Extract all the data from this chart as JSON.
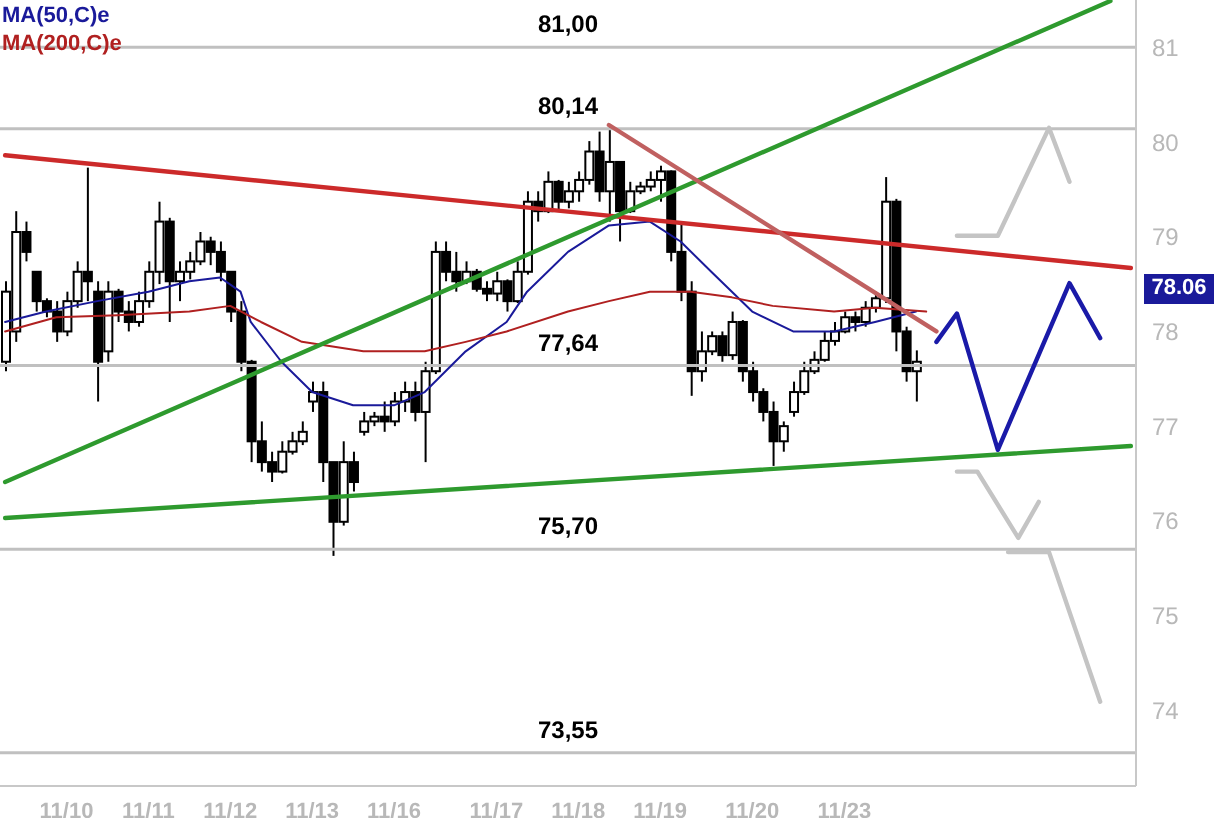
{
  "chart_data": {
    "type": "candlestick",
    "categories": [
      null,
      null,
      null,
      null,
      null,
      null,
      "11/10",
      null,
      null,
      null,
      null,
      null,
      null,
      null,
      "11/11",
      null,
      null,
      null,
      null,
      null,
      null,
      null,
      "11/12",
      null,
      null,
      null,
      null,
      null,
      null,
      null,
      "11/13",
      null,
      null,
      null,
      null,
      null,
      null,
      null,
      "11/16",
      null,
      null,
      null,
      null,
      null,
      null,
      null,
      null,
      null,
      "11/17",
      null,
      null,
      null,
      null,
      null,
      null,
      null,
      "11/18",
      null,
      null,
      null,
      null,
      null,
      null,
      null,
      "11/19",
      null,
      null,
      null,
      null,
      null,
      null,
      null,
      null,
      "11/20",
      null,
      null,
      null,
      null,
      null,
      null,
      null,
      null,
      "11/23",
      null,
      null,
      null,
      null,
      null,
      null,
      null,
      null,
      null,
      null,
      null,
      null,
      null,
      null,
      null,
      null,
      null,
      null,
      null,
      null,
      null,
      null,
      null,
      null,
      null,
      null,
      null,
      null
    ],
    "ohlc": [
      [
        77.68,
        78.53,
        77.58,
        78.42
      ],
      [
        78.0,
        79.27,
        77.89,
        79.05
      ],
      [
        79.05,
        79.16,
        78.74,
        78.84
      ],
      [
        78.63,
        78.63,
        78.21,
        78.32
      ],
      [
        78.32,
        78.35,
        78.15,
        78.21
      ],
      [
        78.21,
        78.32,
        77.89,
        78.0
      ],
      [
        78.0,
        78.42,
        77.95,
        78.32
      ],
      [
        78.32,
        78.74,
        78.25,
        78.63
      ],
      [
        78.63,
        79.73,
        78.32,
        78.53
      ],
      [
        78.42,
        78.53,
        77.26,
        77.68
      ],
      [
        77.79,
        78.53,
        77.68,
        78.42
      ],
      [
        78.42,
        78.45,
        78.1,
        78.21
      ],
      [
        78.21,
        78.32,
        78.0,
        78.1
      ],
      [
        78.1,
        78.42,
        78.05,
        78.32
      ],
      [
        78.32,
        78.74,
        78.25,
        78.63
      ],
      [
        78.63,
        79.37,
        78.5,
        79.16
      ],
      [
        79.16,
        79.2,
        78.1,
        78.53
      ],
      [
        78.53,
        78.74,
        78.32,
        78.63
      ],
      [
        78.63,
        78.84,
        78.55,
        78.74
      ],
      [
        78.74,
        79.05,
        78.7,
        78.95
      ],
      [
        78.95,
        79.0,
        78.7,
        78.84
      ],
      [
        78.84,
        78.95,
        78.53,
        78.63
      ],
      [
        78.63,
        78.63,
        78.1,
        78.21
      ],
      [
        78.21,
        78.32,
        77.58,
        77.68
      ],
      [
        77.68,
        77.7,
        76.62,
        76.84
      ],
      [
        76.84,
        77.05,
        76.52,
        76.62
      ],
      [
        76.62,
        76.73,
        76.41,
        76.52
      ],
      [
        76.52,
        76.84,
        76.5,
        76.73
      ],
      [
        76.73,
        76.94,
        76.7,
        76.84
      ],
      [
        76.84,
        77.05,
        76.8,
        76.94
      ],
      [
        77.26,
        77.47,
        77.15,
        77.36
      ],
      [
        77.36,
        77.47,
        76.41,
        76.62
      ],
      [
        76.62,
        76.62,
        75.63,
        75.99
      ],
      [
        75.99,
        76.84,
        75.95,
        76.62
      ],
      [
        76.62,
        76.73,
        76.31,
        76.41
      ],
      [
        76.94,
        77.15,
        76.9,
        77.05
      ],
      [
        77.05,
        77.15,
        77.0,
        77.1
      ],
      [
        77.1,
        77.26,
        76.94,
        77.05
      ],
      [
        77.05,
        77.36,
        77.0,
        77.26
      ],
      [
        77.26,
        77.47,
        77.15,
        77.36
      ],
      [
        77.36,
        77.47,
        77.05,
        77.15
      ],
      [
        77.15,
        77.68,
        76.62,
        77.58
      ],
      [
        77.58,
        78.95,
        77.55,
        78.84
      ],
      [
        78.84,
        78.95,
        78.53,
        78.63
      ],
      [
        78.63,
        78.84,
        78.42,
        78.53
      ],
      [
        78.53,
        78.74,
        78.5,
        78.63
      ],
      [
        78.63,
        78.66,
        78.42,
        78.45
      ],
      [
        78.45,
        78.53,
        78.32,
        78.4
      ],
      [
        78.4,
        78.63,
        78.32,
        78.53
      ],
      [
        78.53,
        78.55,
        78.21,
        78.32
      ],
      [
        78.32,
        78.74,
        78.3,
        78.63
      ],
      [
        78.63,
        79.48,
        78.6,
        79.37
      ],
      [
        79.37,
        79.48,
        79.16,
        79.27
      ],
      [
        79.27,
        79.69,
        79.25,
        79.58
      ],
      [
        79.58,
        79.6,
        79.27,
        79.37
      ],
      [
        79.37,
        79.58,
        79.3,
        79.48
      ],
      [
        79.48,
        79.69,
        79.37,
        79.6
      ],
      [
        79.6,
        80.01,
        79.55,
        79.9
      ],
      [
        79.9,
        80.11,
        79.37,
        79.48
      ],
      [
        79.48,
        80.18,
        79.16,
        79.79
      ],
      [
        79.79,
        79.8,
        78.95,
        79.27
      ],
      [
        79.27,
        79.58,
        79.25,
        79.48
      ],
      [
        79.48,
        79.58,
        79.45,
        79.53
      ],
      [
        79.53,
        79.69,
        79.48,
        79.6
      ],
      [
        79.6,
        79.75,
        79.37,
        79.69
      ],
      [
        79.69,
        79.7,
        78.74,
        78.84
      ],
      [
        78.84,
        79.16,
        78.32,
        78.42
      ],
      [
        78.42,
        78.53,
        77.32,
        77.58
      ],
      [
        77.58,
        78.0,
        77.47,
        77.79
      ],
      [
        77.79,
        78.0,
        77.75,
        77.95
      ],
      [
        77.95,
        78.0,
        77.68,
        77.75
      ],
      [
        77.75,
        78.21,
        77.7,
        78.1
      ],
      [
        78.1,
        78.12,
        77.47,
        77.58
      ],
      [
        77.58,
        77.68,
        77.26,
        77.36
      ],
      [
        77.36,
        77.4,
        77.05,
        77.15
      ],
      [
        77.15,
        77.26,
        76.58,
        76.84
      ],
      [
        76.84,
        77.05,
        76.73,
        77.0
      ],
      [
        77.15,
        77.47,
        77.1,
        77.36
      ],
      [
        77.36,
        77.68,
        77.33,
        77.58
      ],
      [
        77.58,
        77.79,
        77.55,
        77.7
      ],
      [
        77.7,
        78.0,
        77.68,
        77.9
      ],
      [
        77.9,
        78.1,
        77.85,
        78.0
      ],
      [
        78.0,
        78.21,
        77.98,
        78.15
      ],
      [
        78.15,
        78.21,
        78.0,
        78.1
      ],
      [
        78.1,
        78.32,
        78.05,
        78.25
      ],
      [
        78.25,
        78.42,
        78.2,
        78.35
      ],
      [
        78.35,
        79.63,
        78.3,
        79.37
      ],
      [
        79.37,
        79.4,
        77.79,
        78.0
      ],
      [
        78.0,
        78.05,
        77.47,
        77.58
      ],
      [
        77.58,
        77.8,
        77.26,
        77.68
      ],
      null,
      null,
      null,
      null,
      null,
      null,
      null,
      null,
      null,
      null,
      null,
      null,
      null,
      null,
      null,
      null,
      null,
      null,
      null,
      null,
      null
    ],
    "color": "#000000",
    "series": [
      {
        "type": "line",
        "name": "MA(50,C)e",
        "color": "#1a1a9a",
        "values": [
          78.1,
          null,
          null,
          null,
          78.21,
          null,
          null,
          null,
          null,
          78.32,
          null,
          null,
          null,
          null,
          78.42,
          null,
          null,
          null,
          78.53,
          null,
          null,
          78.57,
          null,
          78.42,
          78.1,
          null,
          null,
          77.68,
          null,
          null,
          77.36,
          null,
          null,
          null,
          77.22,
          null,
          null,
          null,
          77.22,
          null,
          null,
          77.36,
          null,
          null,
          null,
          77.79,
          null,
          null,
          null,
          78.1,
          null,
          78.42,
          null,
          null,
          null,
          78.84,
          null,
          null,
          null,
          79.12,
          null,
          null,
          null,
          79.16,
          null,
          null,
          78.95,
          null,
          null,
          78.63,
          null,
          null,
          null,
          78.21,
          null,
          null,
          null,
          78.0,
          null,
          null,
          null,
          78.0,
          null,
          null,
          null,
          78.1,
          null,
          null,
          null,
          78.21,
          null,
          null,
          null,
          null,
          null,
          null,
          null,
          null,
          null,
          null,
          null,
          null,
          null,
          null,
          null,
          null,
          null,
          null,
          null,
          null,
          null
        ]
      },
      {
        "type": "line",
        "name": "MA(200,C)e",
        "color": "#b02020",
        "values": [
          78.0,
          null,
          null,
          null,
          null,
          78.15,
          null,
          null,
          null,
          null,
          null,
          78.17,
          null,
          null,
          null,
          null,
          null,
          null,
          78.21,
          null,
          null,
          null,
          78.27,
          null,
          null,
          78.1,
          null,
          null,
          null,
          77.89,
          null,
          null,
          null,
          null,
          null,
          77.79,
          null,
          null,
          null,
          null,
          null,
          77.79,
          null,
          null,
          null,
          77.89,
          null,
          null,
          null,
          78.0,
          null,
          null,
          null,
          null,
          null,
          78.21,
          null,
          null,
          null,
          78.32,
          null,
          null,
          null,
          78.42,
          null,
          null,
          null,
          78.42,
          null,
          null,
          null,
          78.36,
          null,
          null,
          null,
          78.27,
          null,
          null,
          null,
          null,
          null,
          78.21,
          null,
          null,
          null,
          78.25,
          null,
          null,
          null,
          null,
          78.21,
          null,
          null,
          null,
          null,
          null,
          null,
          null,
          null,
          null,
          null,
          null,
          null,
          null,
          null,
          null,
          null,
          null,
          null,
          null,
          null
        ]
      },
      {
        "type": "line",
        "color": "#cc2a2a",
        "values": [
          79.86,
          null,
          null,
          null,
          null,
          null,
          null,
          null,
          null,
          null,
          null,
          null,
          null,
          null,
          null,
          null,
          null,
          null,
          null,
          null,
          null,
          null,
          null,
          null,
          null,
          null,
          null,
          null,
          null,
          null,
          null,
          null,
          null,
          null,
          null,
          null,
          null,
          null,
          null,
          null,
          null,
          null,
          null,
          null,
          null,
          null,
          null,
          null,
          null,
          null,
          null,
          null,
          null,
          null,
          null,
          null,
          null,
          null,
          null,
          null,
          null,
          null,
          null,
          null,
          null,
          null,
          null,
          null,
          null,
          null,
          null,
          null,
          null,
          null,
          null,
          null,
          null,
          null,
          null,
          null,
          null,
          null,
          null,
          null,
          null,
          null,
          null,
          null,
          null,
          null,
          null,
          null,
          null,
          null,
          null,
          null,
          null,
          null,
          null,
          null,
          null,
          null,
          null,
          null,
          null,
          null,
          null,
          null,
          null,
          null,
          78.67
        ]
      },
      {
        "type": "line",
        "color": "#2e9a2e",
        "values": [
          76.41,
          null,
          null,
          null,
          null,
          null,
          null,
          null,
          null,
          null,
          null,
          null,
          null,
          null,
          null,
          null,
          null,
          null,
          null,
          null,
          null,
          null,
          null,
          null,
          null,
          null,
          null,
          null,
          null,
          null,
          null,
          null,
          null,
          null,
          null,
          null,
          null,
          null,
          null,
          null,
          null,
          null,
          null,
          null,
          null,
          null,
          null,
          null,
          null,
          null,
          null,
          null,
          null,
          null,
          null,
          null,
          null,
          null,
          null,
          null,
          null,
          null,
          null,
          null,
          null,
          null,
          null,
          null,
          null,
          null,
          null,
          null,
          null,
          null,
          null,
          null,
          null,
          null,
          null,
          null,
          null,
          null,
          null,
          null,
          null,
          null,
          null,
          null,
          null,
          null,
          null,
          null,
          null,
          null,
          null,
          null,
          null,
          null,
          null,
          null,
          null,
          null,
          null,
          null,
          null,
          null,
          null,
          null,
          81.49,
          null,
          null
        ]
      },
      {
        "type": "line",
        "color": "#2e9a2e",
        "values": [
          76.03,
          null,
          null,
          null,
          null,
          null,
          null,
          null,
          null,
          null,
          null,
          null,
          null,
          null,
          null,
          null,
          null,
          null,
          null,
          null,
          null,
          null,
          null,
          null,
          null,
          null,
          null,
          null,
          null,
          null,
          null,
          null,
          null,
          null,
          null,
          null,
          null,
          null,
          null,
          null,
          null,
          null,
          null,
          null,
          null,
          null,
          null,
          null,
          null,
          null,
          null,
          null,
          null,
          null,
          null,
          null,
          null,
          null,
          null,
          null,
          null,
          null,
          null,
          null,
          null,
          null,
          null,
          null,
          null,
          null,
          null,
          null,
          null,
          null,
          null,
          null,
          null,
          null,
          null,
          null,
          null,
          null,
          null,
          null,
          null,
          null,
          null,
          null,
          null,
          null,
          null,
          null,
          null,
          null,
          null,
          null,
          null,
          null,
          null,
          null,
          null,
          null,
          null,
          null,
          null,
          null,
          null,
          null,
          null,
          null,
          76.79
        ]
      },
      {
        "type": "line",
        "color": "#c06060",
        "values": [
          null,
          null,
          null,
          null,
          null,
          null,
          null,
          null,
          null,
          null,
          null,
          null,
          null,
          null,
          null,
          null,
          null,
          null,
          null,
          null,
          null,
          null,
          null,
          null,
          null,
          null,
          null,
          null,
          null,
          null,
          null,
          null,
          null,
          null,
          null,
          null,
          null,
          null,
          null,
          null,
          null,
          null,
          null,
          null,
          null,
          null,
          null,
          null,
          null,
          null,
          null,
          null,
          null,
          null,
          null,
          null,
          null,
          null,
          null,
          80.18,
          null,
          null,
          null,
          null,
          null,
          null,
          null,
          null,
          null,
          null,
          null,
          null,
          null,
          null,
          null,
          null,
          null,
          null,
          null,
          null,
          null,
          null,
          null,
          null,
          null,
          null,
          null,
          null,
          null,
          null,
          null,
          78.0,
          null,
          null,
          null,
          null,
          null,
          null,
          null,
          null,
          null,
          null,
          null,
          null,
          null,
          null,
          null,
          null,
          null,
          null,
          null
        ]
      },
      {
        "type": "line",
        "color": "#1a1aa8",
        "values": [
          null,
          null,
          null,
          null,
          null,
          null,
          null,
          null,
          null,
          null,
          null,
          null,
          null,
          null,
          null,
          null,
          null,
          null,
          null,
          null,
          null,
          null,
          null,
          null,
          null,
          null,
          null,
          null,
          null,
          null,
          null,
          null,
          null,
          null,
          null,
          null,
          null,
          null,
          null,
          null,
          null,
          null,
          null,
          null,
          null,
          null,
          null,
          null,
          null,
          null,
          null,
          null,
          null,
          null,
          null,
          null,
          null,
          null,
          null,
          null,
          null,
          null,
          null,
          null,
          null,
          null,
          null,
          null,
          null,
          null,
          null,
          null,
          null,
          null,
          null,
          null,
          null,
          null,
          null,
          null,
          null,
          null,
          null,
          null,
          null,
          null,
          null,
          null,
          null,
          null,
          null,
          77.89,
          null,
          78.19,
          null,
          null,
          null,
          76.75,
          null,
          null,
          null,
          null,
          null,
          null,
          78.51,
          null,
          null,
          77.93,
          null,
          null,
          null
        ]
      },
      {
        "type": "line",
        "color": "#c4c4c4",
        "values": [
          null,
          null,
          null,
          null,
          null,
          null,
          null,
          null,
          null,
          null,
          null,
          null,
          null,
          null,
          null,
          null,
          null,
          null,
          null,
          null,
          null,
          null,
          null,
          null,
          null,
          null,
          null,
          null,
          null,
          null,
          null,
          null,
          null,
          null,
          null,
          null,
          null,
          null,
          null,
          null,
          null,
          null,
          null,
          null,
          null,
          null,
          null,
          null,
          null,
          null,
          null,
          null,
          null,
          null,
          null,
          null,
          null,
          null,
          null,
          null,
          null,
          null,
          null,
          null,
          null,
          null,
          null,
          null,
          null,
          null,
          null,
          null,
          null,
          null,
          null,
          null,
          null,
          null,
          null,
          null,
          null,
          null,
          null,
          null,
          null,
          null,
          null,
          null,
          null,
          null,
          null,
          null,
          null,
          79.01,
          null,
          null,
          null,
          79.01,
          null,
          null,
          null,
          null,
          80.15,
          null,
          79.58,
          null,
          null,
          null,
          null,
          null,
          null
        ]
      },
      {
        "type": "line",
        "color": "#c4c4c4",
        "values": [
          null,
          null,
          null,
          null,
          null,
          null,
          null,
          null,
          null,
          null,
          null,
          null,
          null,
          null,
          null,
          null,
          null,
          null,
          null,
          null,
          null,
          null,
          null,
          null,
          null,
          null,
          null,
          null,
          null,
          null,
          null,
          null,
          null,
          null,
          null,
          null,
          null,
          null,
          null,
          null,
          null,
          null,
          null,
          null,
          null,
          null,
          null,
          null,
          null,
          null,
          null,
          null,
          null,
          null,
          null,
          null,
          null,
          null,
          null,
          null,
          null,
          null,
          null,
          null,
          null,
          null,
          null,
          null,
          null,
          null,
          null,
          null,
          null,
          null,
          null,
          null,
          null,
          null,
          null,
          null,
          null,
          null,
          null,
          null,
          null,
          null,
          null,
          null,
          null,
          null,
          null,
          null,
          null,
          76.52,
          null,
          76.52,
          null,
          null,
          null,
          75.82,
          null,
          76.2,
          null,
          null,
          null,
          null,
          null,
          null,
          null,
          null,
          null
        ]
      },
      {
        "type": "line",
        "color": "#c4c4c4",
        "values": [
          null,
          null,
          null,
          null,
          null,
          null,
          null,
          null,
          null,
          null,
          null,
          null,
          null,
          null,
          null,
          null,
          null,
          null,
          null,
          null,
          null,
          null,
          null,
          null,
          null,
          null,
          null,
          null,
          null,
          null,
          null,
          null,
          null,
          null,
          null,
          null,
          null,
          null,
          null,
          null,
          null,
          null,
          null,
          null,
          null,
          null,
          null,
          null,
          null,
          null,
          null,
          null,
          null,
          null,
          null,
          null,
          null,
          null,
          null,
          null,
          null,
          null,
          null,
          null,
          null,
          null,
          null,
          null,
          null,
          null,
          null,
          null,
          null,
          null,
          null,
          null,
          null,
          null,
          null,
          null,
          null,
          null,
          null,
          null,
          null,
          null,
          null,
          null,
          null,
          null,
          null,
          null,
          null,
          null,
          null,
          null,
          null,
          null,
          75.67,
          null,
          null,
          null,
          75.67,
          null,
          null,
          null,
          null,
          74.09,
          null,
          null,
          null
        ]
      }
    ],
    "ylim": [
      73.2,
      81.5
    ],
    "yticks": [
      74,
      75,
      76,
      77,
      78,
      79,
      80,
      81
    ],
    "ref_lines": [
      {
        "axis": "y",
        "value": 81.0,
        "label": "81,00",
        "color": "#c0c0c0"
      },
      {
        "axis": "y",
        "value": 80.14,
        "label": "80,14",
        "color": "#c0c0c0"
      },
      {
        "axis": "y",
        "value": 77.64,
        "label": "77,64",
        "color": "#c0c0c0"
      },
      {
        "axis": "y",
        "value": 75.7,
        "label": "75,70",
        "color": "#c0c0c0"
      },
      {
        "axis": "y",
        "value": 73.55,
        "label": "73,55",
        "color": "#c0c0c0"
      }
    ],
    "annotations": [
      "78.06"
    ],
    "legend": "top left",
    "marker": "none"
  }
}
